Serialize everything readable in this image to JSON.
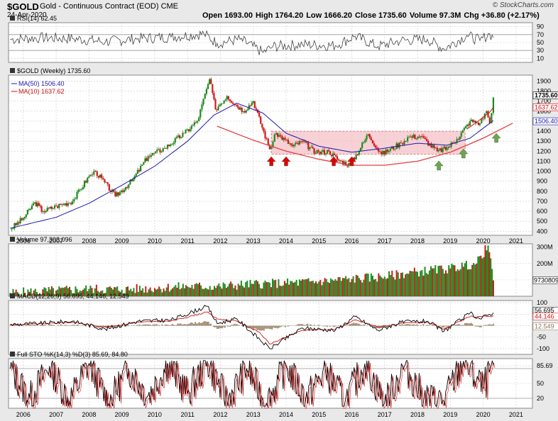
{
  "header": {
    "symbol": "$GOLD",
    "subtitle": "Gold - Continuous Contract (EOD)  CME",
    "date": "24-Apr-2020",
    "ohlc": [
      {
        "label": "Open",
        "value": "1693.00"
      },
      {
        "label": "High",
        "value": "1764.20"
      },
      {
        "label": "Low",
        "value": "1666.20"
      },
      {
        "label": "Close",
        "value": "1735.60"
      },
      {
        "label": "Volume",
        "value": "97.3M"
      },
      {
        "label": "Chg",
        "value": "+36.80 (+2.17%)"
      }
    ],
    "watermark": "© StockCharts.com"
  },
  "colors": {
    "up": "#1f8a1f",
    "down": "#d01818",
    "ma50": "#1a1aa8",
    "ma10": "#cc1111",
    "arc": "#e34040",
    "zone": "#f2b8c0",
    "panel_bg": "#ffffff",
    "grid": "#cccccc",
    "green_arrow": "#6aa84f",
    "red_arrow": "#e00000"
  },
  "chart_data": [
    {
      "type": "line",
      "panel": "rsi",
      "title": "RSI(14) 62.45",
      "ylim": [
        0,
        100
      ],
      "ticks": [
        "90",
        "70",
        "50",
        "30",
        "10"
      ],
      "levels": [
        70,
        30
      ],
      "x_years": [
        "2006",
        "2007",
        "2008",
        "2009",
        "2010",
        "2011",
        "2012",
        "2013",
        "2014",
        "2015",
        "2016",
        "2017",
        "2018",
        "2019",
        "2020",
        "2021"
      ],
      "x": [
        2005.6,
        2006.5,
        2007.5,
        2008.5,
        2009.5,
        2010.5,
        2011.5,
        2011.9,
        2012.6,
        2013.3,
        2013.6,
        2014.5,
        2015.5,
        2016.1,
        2016.8,
        2017.5,
        2018.3,
        2018.8,
        2019.5,
        2019.9,
        2020.2,
        2020.31
      ],
      "values": [
        58,
        62,
        60,
        52,
        60,
        64,
        72,
        48,
        58,
        25,
        40,
        45,
        42,
        66,
        40,
        55,
        58,
        34,
        68,
        55,
        72,
        62.45
      ]
    },
    {
      "type": "line",
      "panel": "price",
      "title": "$GOLD (Weekly) 1735.60",
      "ylim": [
        360,
        1960
      ],
      "ticks": [
        "1900",
        "1800",
        "1700",
        "1600",
        "1500",
        "1400",
        "1300",
        "1200",
        "1100",
        "1000",
        "900",
        "800",
        "700",
        "600",
        "500",
        "400"
      ],
      "price_labels": [
        "1735.60",
        "1637.62",
        "1506.40"
      ],
      "x_years": [
        "2006",
        "2007",
        "2008",
        "2009",
        "2010",
        "2011",
        "2012",
        "2013",
        "2014",
        "2015",
        "2016",
        "2017",
        "2018",
        "2019",
        "2020",
        "2021"
      ],
      "series": [
        {
          "name": "$GOLD",
          "x": [
            2005.6,
            2006.0,
            2006.35,
            2006.6,
            2007.0,
            2007.5,
            2008.0,
            2008.2,
            2008.8,
            2009.3,
            2009.8,
            2010.3,
            2010.9,
            2011.3,
            2011.67,
            2011.85,
            2012.2,
            2012.7,
            2013.0,
            2013.5,
            2013.7,
            2014.2,
            2014.5,
            2014.9,
            2015.3,
            2015.6,
            2015.95,
            2016.5,
            2016.9,
            2017.5,
            2017.7,
            2018.1,
            2018.6,
            2018.9,
            2019.2,
            2019.6,
            2019.9,
            2020.1,
            2020.2,
            2020.31
          ],
          "values": [
            420,
            530,
            690,
            600,
            650,
            700,
            950,
            1000,
            750,
            900,
            1150,
            1230,
            1380,
            1500,
            1920,
            1620,
            1750,
            1600,
            1700,
            1220,
            1380,
            1250,
            1300,
            1180,
            1200,
            1110,
            1060,
            1370,
            1170,
            1280,
            1340,
            1350,
            1200,
            1230,
            1320,
            1500,
            1480,
            1600,
            1480,
            1735.6
          ]
        },
        {
          "name": "MA(50) 1506.40",
          "x": [
            2005.6,
            2007,
            2008,
            2009,
            2010,
            2011,
            2011.8,
            2012.5,
            2013.3,
            2014,
            2015,
            2016,
            2017,
            2018,
            2018.9,
            2019.6,
            2020.31
          ],
          "values": [
            430,
            540,
            680,
            860,
            1050,
            1300,
            1560,
            1680,
            1580,
            1380,
            1250,
            1190,
            1230,
            1280,
            1260,
            1330,
            1506.4
          ]
        },
        {
          "name": "MA(10) 1637.62",
          "x": [
            2019.5,
            2019.8,
            2020.0,
            2020.2,
            2020.31
          ],
          "values": [
            1420,
            1490,
            1540,
            1590,
            1637.62
          ]
        }
      ],
      "annotations": {
        "zone": {
          "y_top": 1400,
          "y_bottom": 1170,
          "x_start": 2013.55,
          "x_end": 2019.45
        },
        "arc": {
          "x": [
            2011.9,
            2013,
            2014,
            2015,
            2016,
            2017,
            2018,
            2019,
            2020,
            2020.9
          ],
          "y": [
            1450,
            1310,
            1200,
            1120,
            1060,
            1060,
            1100,
            1190,
            1330,
            1480
          ]
        },
        "red_arrows_x": [
          2013.55,
          2014.0,
          2015.45,
          2016.0
        ],
        "green_arrows_x": [
          2018.65,
          2019.4,
          2020.4
        ]
      }
    },
    {
      "type": "bar",
      "panel": "volume",
      "title": "Volume 97,308,096",
      "ylim": [
        0,
        320
      ],
      "ticks": [
        "300M",
        "200M",
        "100M"
      ],
      "last_label": "97308096",
      "x": [
        2005.6,
        2007,
        2008,
        2009,
        2010,
        2011,
        2012,
        2013,
        2014,
        2015,
        2016,
        2017,
        2018,
        2019,
        2019.8,
        2020.15,
        2020.31
      ],
      "values": [
        20,
        35,
        45,
        40,
        50,
        60,
        60,
        75,
        80,
        90,
        105,
        120,
        150,
        170,
        200,
        310,
        97.3
      ]
    },
    {
      "type": "line",
      "panel": "macd",
      "title": "MACD(12,26,9) 56.695, 44.146, 12.549",
      "ylim": [
        -125,
        110
      ],
      "ticks": [
        "100",
        "50",
        "0",
        "-50",
        "-100"
      ],
      "value_labels": [
        "56.695",
        "44.146",
        "12.549"
      ],
      "x": [
        2005.6,
        2006.5,
        2007.5,
        2008.5,
        2009.5,
        2010.5,
        2011.6,
        2011.9,
        2012.5,
        2013.2,
        2013.5,
        2014.5,
        2015.5,
        2016.1,
        2016.8,
        2017.5,
        2018.3,
        2018.8,
        2019.6,
        2019.9,
        2020.2,
        2020.31
      ],
      "series": [
        {
          "name": "MACD",
          "values": [
            5,
            10,
            20,
            -15,
            20,
            25,
            85,
            10,
            30,
            -60,
            -100,
            -10,
            -20,
            40,
            -20,
            15,
            20,
            -25,
            55,
            30,
            50,
            56.695
          ]
        },
        {
          "name": "Signal",
          "values": [
            3,
            8,
            15,
            -5,
            15,
            20,
            60,
            30,
            20,
            -30,
            -80,
            -20,
            -15,
            25,
            -5,
            10,
            15,
            -15,
            40,
            40,
            40,
            44.146
          ]
        }
      ]
    },
    {
      "type": "line",
      "panel": "sto",
      "title": "Full STO %K(14,3) %D(3) 85.69, 84.80",
      "ylim": [
        0,
        100
      ],
      "ticks": [
        "85.69",
        "50",
        "20"
      ],
      "levels": [
        80,
        20
      ],
      "x": [
        2005.6,
        2006.2,
        2006.8,
        2007.4,
        2008.0,
        2008.6,
        2009.2,
        2009.8,
        2010.4,
        2011.0,
        2011.6,
        2012.2,
        2012.8,
        2013.4,
        2014.0,
        2014.6,
        2015.2,
        2015.8,
        2016.4,
        2017.0,
        2017.6,
        2018.2,
        2018.8,
        2019.4,
        2020.0,
        2020.31
      ],
      "series": [
        {
          "name": "%K",
          "values": [
            80,
            20,
            85,
            15,
            90,
            10,
            80,
            25,
            90,
            30,
            95,
            15,
            80,
            10,
            85,
            20,
            75,
            15,
            90,
            10,
            85,
            20,
            15,
            95,
            40,
            85.69
          ]
        }
      ]
    }
  ]
}
